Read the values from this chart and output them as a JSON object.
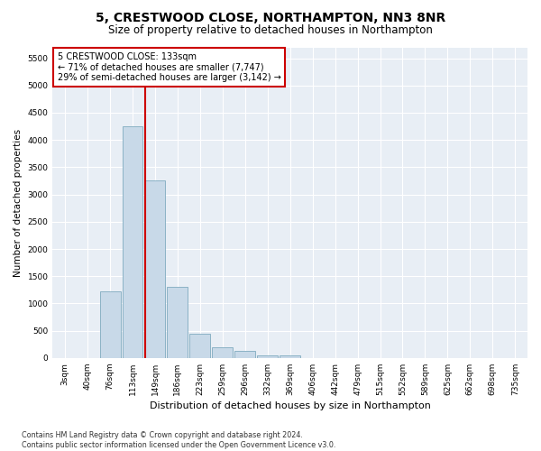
{
  "title": "5, CRESTWOOD CLOSE, NORTHAMPTON, NN3 8NR",
  "subtitle": "Size of property relative to detached houses in Northampton",
  "xlabel": "Distribution of detached houses by size in Northampton",
  "ylabel": "Number of detached properties",
  "footnote": "Contains HM Land Registry data © Crown copyright and database right 2024.\nContains public sector information licensed under the Open Government Licence v3.0.",
  "bar_labels": [
    "3sqm",
    "40sqm",
    "76sqm",
    "113sqm",
    "149sqm",
    "186sqm",
    "223sqm",
    "259sqm",
    "296sqm",
    "332sqm",
    "369sqm",
    "406sqm",
    "442sqm",
    "479sqm",
    "515sqm",
    "552sqm",
    "589sqm",
    "625sqm",
    "662sqm",
    "698sqm",
    "735sqm"
  ],
  "bar_values": [
    0,
    0,
    1230,
    4250,
    3250,
    1300,
    440,
    200,
    130,
    50,
    40,
    0,
    0,
    0,
    0,
    0,
    0,
    0,
    0,
    0,
    0
  ],
  "bar_color": "#c8d9e8",
  "bar_edge_color": "#7faabf",
  "vline_color": "#cc0000",
  "annotation_text_line1": "5 CRESTWOOD CLOSE: 133sqm",
  "annotation_text_line2": "← 71% of detached houses are smaller (7,747)",
  "annotation_text_line3": "29% of semi-detached houses are larger (3,142) →",
  "annotation_box_color": "#cc0000",
  "ylim_max": 5700,
  "yticks": [
    0,
    500,
    1000,
    1500,
    2000,
    2500,
    3000,
    3500,
    4000,
    4500,
    5000,
    5500
  ],
  "bg_color": "#e8eef5",
  "grid_color": "#ffffff",
  "title_fontsize": 10,
  "subtitle_fontsize": 8.5,
  "xlabel_fontsize": 8,
  "ylabel_fontsize": 7.5,
  "tick_fontsize": 6.5,
  "annotation_fontsize": 7,
  "footnote_fontsize": 5.8
}
